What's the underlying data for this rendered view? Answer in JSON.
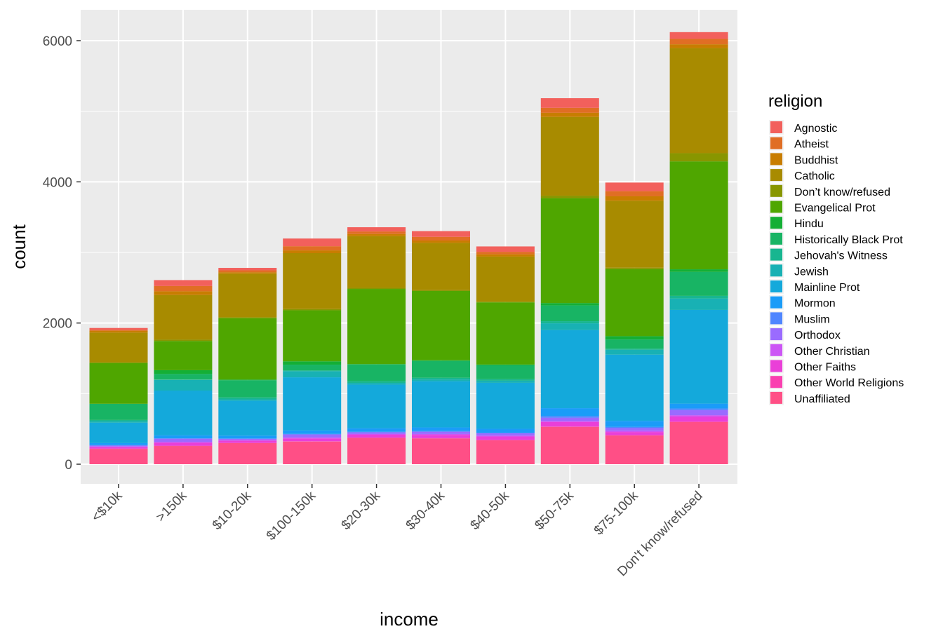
{
  "chart_data": {
    "type": "bar",
    "stacked": true,
    "xlabel": "income",
    "ylabel": "count",
    "ylim": [
      -300,
      6400
    ],
    "yticks": [
      0,
      2000,
      4000,
      6000
    ],
    "grid": true,
    "legend": {
      "title": "religion",
      "position": "right"
    },
    "categories": [
      "<$10k",
      ">150k",
      "$10-20k",
      "$100-150k",
      "$20-30k",
      "$30-40k",
      "$40-50k",
      "$50-75k",
      "$75-100k",
      "Don't know/refused"
    ],
    "series": [
      {
        "name": "Agnostic",
        "color": "#F2605C",
        "values": [
          27,
          84,
          34,
          109,
          60,
          81,
          76,
          137,
          122,
          96
        ]
      },
      {
        "name": "Atheist",
        "color": "#E06E24",
        "values": [
          12,
          74,
          27,
          59,
          37,
          52,
          35,
          70,
          73,
          76
        ]
      },
      {
        "name": "Buddhist",
        "color": "#C87D00",
        "values": [
          27,
          53,
          21,
          39,
          30,
          34,
          33,
          58,
          62,
          54
        ]
      },
      {
        "name": "Catholic",
        "color": "#A88B00",
        "values": [
          418,
          633,
          617,
          792,
          732,
          670,
          638,
          1116,
          949,
          1489
        ]
      },
      {
        "name": "Don’t know/refused",
        "color": "#889600",
        "values": [
          15,
          18,
          14,
          17,
          15,
          11,
          10,
          35,
          21,
          116
        ]
      },
      {
        "name": "Evangelical Prot",
        "color": "#4FA600",
        "values": [
          575,
          414,
          869,
          723,
          1064,
          982,
          881,
          1486,
          949,
          1529
        ]
      },
      {
        "name": "Hindu",
        "color": "#14AF35",
        "values": [
          1,
          54,
          9,
          48,
          7,
          9,
          11,
          34,
          47,
          37
        ]
      },
      {
        "name": "Historically Black Prot",
        "color": "#18B464",
        "values": [
          228,
          78,
          244,
          81,
          236,
          238,
          197,
          223,
          131,
          339
        ]
      },
      {
        "name": "Jehovah's Witness",
        "color": "#18B690",
        "values": [
          20,
          6,
          27,
          11,
          24,
          24,
          21,
          30,
          15,
          37
        ]
      },
      {
        "name": "Jewish",
        "color": "#18B1B4",
        "values": [
          19,
          151,
          19,
          87,
          25,
          25,
          30,
          95,
          69,
          162
        ]
      },
      {
        "name": "Mainline Prot",
        "color": "#14A9DB",
        "values": [
          289,
          634,
          495,
          753,
          619,
          655,
          651,
          1107,
          939,
          1328
        ]
      },
      {
        "name": "Mormon",
        "color": "#1A9CF8",
        "values": [
          29,
          42,
          40,
          49,
          48,
          51,
          56,
          112,
          85,
          69
        ]
      },
      {
        "name": "Muslim",
        "color": "#4F86FF",
        "values": [
          6,
          6,
          7,
          8,
          9,
          10,
          9,
          23,
          16,
          22
        ]
      },
      {
        "name": "Orthodox",
        "color": "#9A6BFF",
        "values": [
          13,
          46,
          17,
          42,
          23,
          32,
          32,
          47,
          38,
          73
        ]
      },
      {
        "name": "Other Christian",
        "color": "#CC55F5",
        "values": [
          9,
          12,
          7,
          14,
          11,
          13,
          13,
          14,
          18,
          18
        ]
      },
      {
        "name": "Other Faiths",
        "color": "#EA3FD8",
        "values": [
          20,
          41,
          33,
          40,
          40,
          46,
          49,
          63,
          46,
          71
        ]
      },
      {
        "name": "Other World Religions",
        "color": "#FA3FB0",
        "values": [
          5,
          4,
          2,
          4,
          3,
          4,
          2,
          7,
          3,
          8
        ]
      },
      {
        "name": "Unaffiliated",
        "color": "#FF4F86",
        "values": [
          217,
          258,
          299,
          321,
          374,
          365,
          341,
          528,
          407,
          597
        ]
      }
    ]
  }
}
